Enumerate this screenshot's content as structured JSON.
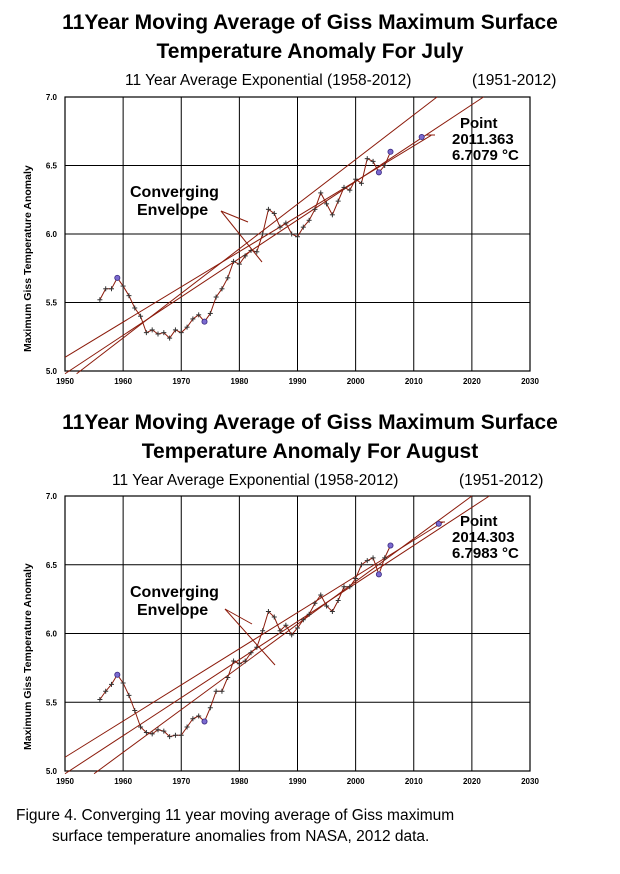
{
  "charts": [
    {
      "title_line1": "11Year Moving Average of Giss Maximum  Surface",
      "title_line2": "Temperature Anomaly For July",
      "subtitle_left": "11 Year Average Exponential (1958-2012)",
      "subtitle_right": "(1951-2012)",
      "ylabel": "Maximum Giss Temperature Anomaly",
      "annotation_line1": "Converging",
      "annotation_line2": "Envelope",
      "point_label": "Point",
      "point_x": "2011.363",
      "point_y": "6.7079 °C"
    },
    {
      "title_line1": "11Year Moving Average of Giss Maximum  Surface",
      "title_line2": "Temperature Anomaly For August",
      "subtitle_left": "11 Year Average Exponential (1958-2012)",
      "subtitle_right": "(1951-2012)",
      "ylabel": "Maximum Giss Temperature Anomaly",
      "annotation_line1": "Converging",
      "annotation_line2": "Envelope",
      "point_label": "Point",
      "point_x": "2014.303",
      "point_y": "6.7983 °C"
    }
  ],
  "caption": {
    "line1": "Figure 4.  Converging 11 year moving average of Giss maximum",
    "line2": "surface temperature anomalies from NASA, 2012 data."
  },
  "chart_data": [
    {
      "type": "line",
      "title": "11Year Moving Average of Giss Maximum  Surface Temperature Anomaly For July",
      "xlabel": "",
      "ylabel": "Maximum Giss Temperature Anomaly",
      "xlim": [
        1950,
        2030
      ],
      "ylim": [
        5.0,
        7.0
      ],
      "xticks": [
        "1950",
        "1960",
        "1970",
        "1980",
        "1990",
        "2000",
        "2010",
        "2020",
        "2030"
      ],
      "yticks": [
        "5.0",
        "5.5",
        "6.0",
        "6.5",
        "7.0"
      ],
      "grid": true,
      "line_color": "#8b1a0a",
      "series": [
        {
          "x": [
            1956,
            1957,
            1958,
            1959,
            1960,
            1961,
            1962,
            1963,
            1964,
            1965,
            1966,
            1967,
            1968,
            1969,
            1970,
            1971,
            1972,
            1973,
            1974,
            1975,
            1976,
            1977,
            1978,
            1979,
            1980,
            1981,
            1982,
            1983,
            1984,
            1985,
            1986,
            1987,
            1988,
            1989,
            1990,
            1991,
            1992,
            1993,
            1994,
            1995,
            1996,
            1997,
            1998,
            1999,
            2000,
            2001,
            2002,
            2003,
            2004,
            2005,
            2006
          ],
          "y": [
            5.52,
            5.6,
            5.6,
            5.68,
            5.62,
            5.55,
            5.46,
            5.4,
            5.28,
            5.3,
            5.27,
            5.28,
            5.24,
            5.3,
            5.28,
            5.32,
            5.38,
            5.41,
            5.36,
            5.42,
            5.54,
            5.6,
            5.68,
            5.8,
            5.78,
            5.84,
            5.88,
            5.87,
            6.0,
            6.18,
            6.15,
            6.05,
            6.08,
            6.0,
            5.98,
            6.05,
            6.1,
            6.18,
            6.3,
            6.22,
            6.14,
            6.24,
            6.34,
            6.32,
            6.4,
            6.37,
            6.55,
            6.53,
            6.45,
            6.5,
            6.6
          ]
        }
      ],
      "trend_lines": [
        {
          "x": [
            1950,
            2013
          ],
          "y": [
            5.1,
            6.72
          ]
        },
        {
          "x": [
            1950,
            2022
          ],
          "y": [
            4.98,
            7.0
          ]
        },
        {
          "x": [
            1952,
            2014
          ],
          "y": [
            4.98,
            7.0
          ]
        }
      ],
      "markers": [
        {
          "x": 1959,
          "y": 5.68
        },
        {
          "x": 1974,
          "y": 5.36
        },
        {
          "x": 2004,
          "y": 6.45
        },
        {
          "x": 2006,
          "y": 6.6
        },
        {
          "x": 2011.363,
          "y": 6.7079
        }
      ]
    },
    {
      "type": "line",
      "title": "11Year Moving Average of Giss Maximum  Surface Temperature Anomaly For August",
      "xlabel": "",
      "ylabel": "Maximum Giss Temperature Anomaly",
      "xlim": [
        1950,
        2030
      ],
      "ylim": [
        5.0,
        7.0
      ],
      "xticks": [
        "1950",
        "1960",
        "1970",
        "1980",
        "1990",
        "2000",
        "2010",
        "2020",
        "2030"
      ],
      "yticks": [
        "5.0",
        "5.5",
        "6.0",
        "6.5",
        "7.0"
      ],
      "grid": true,
      "line_color": "#8b1a0a",
      "series": [
        {
          "x": [
            1956,
            1957,
            1958,
            1959,
            1960,
            1961,
            1962,
            1963,
            1964,
            1965,
            1966,
            1967,
            1968,
            1969,
            1970,
            1971,
            1972,
            1973,
            1974,
            1975,
            1976,
            1977,
            1978,
            1979,
            1980,
            1981,
            1982,
            1983,
            1984,
            1985,
            1986,
            1987,
            1988,
            1989,
            1990,
            1991,
            1992,
            1993,
            1994,
            1995,
            1996,
            1997,
            1998,
            1999,
            2000,
            2001,
            2002,
            2003,
            2004,
            2005,
            2006
          ],
          "y": [
            5.52,
            5.58,
            5.63,
            5.7,
            5.64,
            5.55,
            5.44,
            5.32,
            5.28,
            5.27,
            5.3,
            5.29,
            5.25,
            5.26,
            5.26,
            5.32,
            5.38,
            5.4,
            5.36,
            5.46,
            5.58,
            5.58,
            5.68,
            5.8,
            5.78,
            5.8,
            5.86,
            5.9,
            6.02,
            6.16,
            6.12,
            6.02,
            6.06,
            5.99,
            6.04,
            6.1,
            6.14,
            6.22,
            6.28,
            6.2,
            6.16,
            6.24,
            6.34,
            6.34,
            6.4,
            6.5,
            6.53,
            6.55,
            6.43,
            6.55,
            6.64
          ]
        }
      ],
      "trend_lines": [
        {
          "x": [
            1950,
            2015
          ],
          "y": [
            5.1,
            6.81
          ]
        },
        {
          "x": [
            1950,
            2023
          ],
          "y": [
            4.98,
            7.0
          ]
        },
        {
          "x": [
            1955,
            2020
          ],
          "y": [
            4.98,
            7.0
          ]
        }
      ],
      "markers": [
        {
          "x": 1959,
          "y": 5.7
        },
        {
          "x": 1974,
          "y": 5.36
        },
        {
          "x": 2004,
          "y": 6.43
        },
        {
          "x": 2006,
          "y": 6.64
        },
        {
          "x": 2014.303,
          "y": 6.7983
        }
      ]
    }
  ]
}
